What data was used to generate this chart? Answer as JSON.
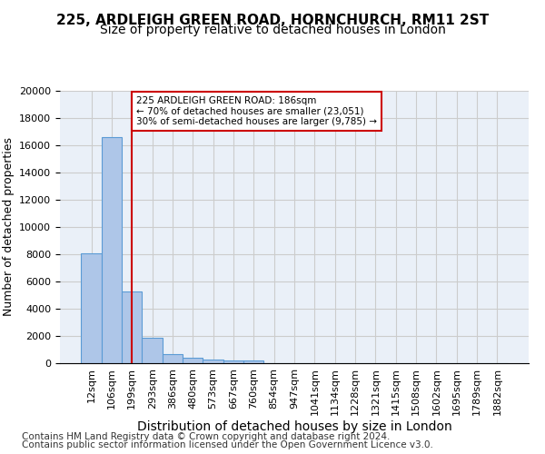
{
  "title1": "225, ARDLEIGH GREEN ROAD, HORNCHURCH, RM11 2ST",
  "title2": "Size of property relative to detached houses in London",
  "xlabel": "Distribution of detached houses by size in London",
  "ylabel": "Number of detached properties",
  "bar_values": [
    8100,
    16600,
    5300,
    1850,
    700,
    380,
    290,
    230,
    190,
    0,
    0,
    0,
    0,
    0,
    0,
    0,
    0,
    0,
    0,
    0,
    0
  ],
  "bar_labels": [
    "12sqm",
    "106sqm",
    "199sqm",
    "293sqm",
    "386sqm",
    "480sqm",
    "573sqm",
    "667sqm",
    "760sqm",
    "854sqm",
    "947sqm",
    "1041sqm",
    "1134sqm",
    "1228sqm",
    "1321sqm",
    "1415sqm",
    "1508sqm",
    "1602sqm",
    "1695sqm",
    "1789sqm",
    "1882sqm"
  ],
  "bar_color": "#aec6e8",
  "bar_edge_color": "#5b9bd5",
  "vline_x": 2.0,
  "vline_color": "#cc0000",
  "annotation_text": "225 ARDLEIGH GREEN ROAD: 186sqm\n← 70% of detached houses are smaller (23,051)\n30% of semi-detached houses are larger (9,785) →",
  "annotation_box_color": "#cc0000",
  "ylim": [
    0,
    20000
  ],
  "yticks": [
    0,
    2000,
    4000,
    6000,
    8000,
    10000,
    12000,
    14000,
    16000,
    18000,
    20000
  ],
  "grid_color": "#cccccc",
  "bg_color": "#eaf0f8",
  "footer_line1": "Contains HM Land Registry data © Crown copyright and database right 2024.",
  "footer_line2": "Contains public sector information licensed under the Open Government Licence v3.0.",
  "title1_fontsize": 11,
  "title2_fontsize": 10,
  "xlabel_fontsize": 10,
  "ylabel_fontsize": 9,
  "tick_fontsize": 8,
  "footer_fontsize": 7.5
}
